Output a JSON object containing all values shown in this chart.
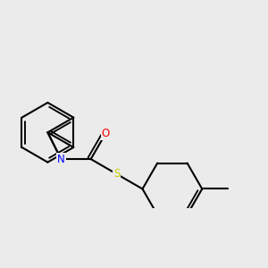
{
  "background_color": "#ebebeb",
  "bond_color": "#000000",
  "bond_lw": 1.5,
  "atom_colors": {
    "N": "#0000ff",
    "O": "#ff0000",
    "S": "#cccc00",
    "C": "#000000"
  },
  "font_size": 8.5,
  "fig_size": [
    3.0,
    3.0
  ],
  "dpi": 100
}
